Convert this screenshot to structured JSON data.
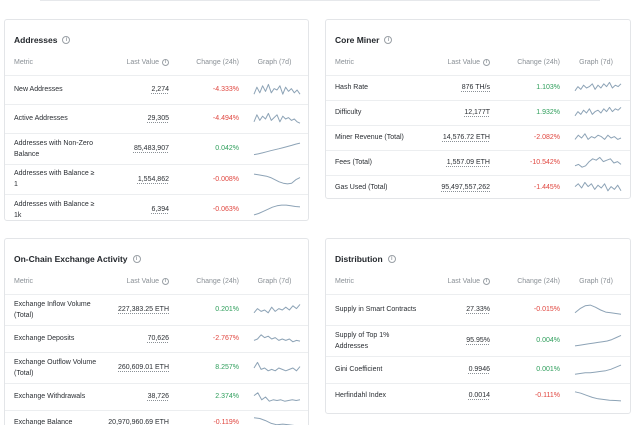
{
  "headers": {
    "metric": "Metric",
    "last_value": "Last Value",
    "change": "Change (24h)",
    "graph": "Graph (7d)"
  },
  "colors": {
    "positive": "#2e9e5b",
    "negative": "#e0463f",
    "sparkline": "#8da3b6"
  },
  "cards": {
    "addresses": {
      "title": "Addresses",
      "rows": [
        {
          "metric": "New Addresses",
          "value": "2,274",
          "change": "-4.333%",
          "trend": "neg",
          "spark": [
            0.2,
            0.7,
            0.3,
            0.8,
            0.4,
            0.9,
            0.3,
            0.6,
            0.5,
            0.8,
            0.2,
            0.7,
            0.4,
            0.6,
            0.3,
            0.5,
            0.2
          ]
        },
        {
          "metric": "Active Addresses",
          "value": "29,305",
          "change": "-4.494%",
          "trend": "neg",
          "spark": [
            0.3,
            0.8,
            0.4,
            0.7,
            0.5,
            0.9,
            0.4,
            0.6,
            0.8,
            0.3,
            0.7,
            0.5,
            0.6,
            0.4,
            0.5,
            0.3,
            0.2
          ]
        },
        {
          "metric": "Addresses with Non-Zero Balance",
          "value": "85,483,907",
          "change": "0.042%",
          "trend": "pos",
          "spark": [
            0.1,
            0.15,
            0.22,
            0.3,
            0.38,
            0.45,
            0.52,
            0.6,
            0.68,
            0.76,
            0.85,
            0.92
          ]
        },
        {
          "metric": "Addresses with Balance ≥ 1",
          "value": "1,554,862",
          "change": "-0.008%",
          "trend": "neg",
          "spark": [
            0.85,
            0.8,
            0.75,
            0.7,
            0.6,
            0.45,
            0.3,
            0.2,
            0.15,
            0.2,
            0.45,
            0.6
          ]
        },
        {
          "metric": "Addresses with Balance ≥ 1k",
          "value": "6,394",
          "change": "-0.063%",
          "trend": "neg",
          "spark": [
            0.15,
            0.25,
            0.4,
            0.55,
            0.7,
            0.8,
            0.85,
            0.85,
            0.8,
            0.75,
            0.72
          ]
        }
      ]
    },
    "miner": {
      "title": "Core Miner",
      "rows": [
        {
          "metric": "Hash Rate",
          "value": "876 TH/s",
          "change": "1.103%",
          "trend": "pos",
          "spark": [
            0.3,
            0.6,
            0.4,
            0.7,
            0.5,
            0.6,
            0.8,
            0.4,
            0.7,
            0.5,
            0.8,
            0.6,
            0.9,
            0.5,
            0.7,
            0.6,
            0.8
          ]
        },
        {
          "metric": "Difficulty",
          "value": "12,177T",
          "change": "1.932%",
          "trend": "pos",
          "spark": [
            0.3,
            0.6,
            0.4,
            0.7,
            0.5,
            0.8,
            0.4,
            0.6,
            0.7,
            0.5,
            0.8,
            0.6,
            0.9,
            0.6,
            0.8,
            0.7,
            0.9
          ]
        },
        {
          "metric": "Miner Revenue (Total)",
          "value": "14,576.72 ETH",
          "change": "-2.082%",
          "trend": "neg",
          "spark": [
            0.4,
            0.7,
            0.5,
            0.8,
            0.4,
            0.6,
            0.5,
            0.7,
            0.6,
            0.4,
            0.7,
            0.5,
            0.6,
            0.4,
            0.5
          ]
        },
        {
          "metric": "Fees (Total)",
          "value": "1,557.09 ETH",
          "change": "-10.542%",
          "trend": "neg",
          "spark": [
            0.3,
            0.4,
            0.2,
            0.3,
            0.6,
            0.8,
            0.7,
            0.9,
            0.6,
            0.7,
            0.8,
            0.5,
            0.6,
            0.4
          ]
        },
        {
          "metric": "Gas Used (Total)",
          "value": "95,497,557,262",
          "change": "-1.445%",
          "trend": "neg",
          "spark": [
            0.6,
            0.8,
            0.5,
            0.9,
            0.6,
            0.8,
            0.4,
            0.7,
            0.5,
            0.8,
            0.3,
            0.6,
            0.4,
            0.7,
            0.3
          ]
        }
      ]
    },
    "exchange": {
      "title": "On-Chain Exchange Activity",
      "rows": [
        {
          "metric": "Exchange Inflow Volume (Total)",
          "value": "227,383.25 ETH",
          "change": "0.201%",
          "trend": "pos",
          "spark": [
            0.3,
            0.6,
            0.4,
            0.5,
            0.3,
            0.7,
            0.4,
            0.6,
            0.5,
            0.7,
            0.5,
            0.8,
            0.6,
            0.9
          ]
        },
        {
          "metric": "Exchange Deposits",
          "value": "70,626",
          "change": "-2.767%",
          "trend": "neg",
          "spark": [
            0.4,
            0.5,
            0.8,
            0.6,
            0.7,
            0.5,
            0.6,
            0.4,
            0.5,
            0.4,
            0.5,
            0.3,
            0.4,
            0.35
          ]
        },
        {
          "metric": "Exchange Outflow Volume (Total)",
          "value": "260,609.01 ETH",
          "change": "8.257%",
          "trend": "pos",
          "spark": [
            0.5,
            0.9,
            0.4,
            0.5,
            0.3,
            0.4,
            0.3,
            0.5,
            0.4,
            0.3,
            0.4,
            0.5,
            0.3,
            0.6
          ]
        },
        {
          "metric": "Exchange Withdrawals",
          "value": "38,726",
          "change": "2.374%",
          "trend": "pos",
          "spark": [
            0.6,
            0.8,
            0.3,
            0.5,
            0.2,
            0.3,
            0.25,
            0.3,
            0.2,
            0.25,
            0.3,
            0.25,
            0.3
          ]
        },
        {
          "metric": "Exchange Balance",
          "value": "20,970,960.69 ETH",
          "change": "-0.119%",
          "trend": "neg",
          "spark": [
            0.8,
            0.75,
            0.6,
            0.4,
            0.3,
            0.35,
            0.3,
            0.25,
            0.2
          ]
        }
      ]
    },
    "distribution": {
      "title": "Distribution",
      "rows": [
        {
          "metric": "Supply in Smart Contracts",
          "value": "27.33%",
          "change": "-0.015%",
          "trend": "neg",
          "spark": [
            0.3,
            0.6,
            0.8,
            0.85,
            0.7,
            0.5,
            0.35,
            0.3,
            0.25,
            0.2
          ]
        },
        {
          "metric": "Supply of Top 1% Addresses",
          "value": "95.95%",
          "change": "0.004%",
          "trend": "pos",
          "spark": [
            0.15,
            0.2,
            0.25,
            0.3,
            0.35,
            0.4,
            0.45,
            0.5,
            0.6,
            0.75,
            0.9
          ]
        },
        {
          "metric": "Gini Coefficient",
          "value": "0.9946",
          "change": "0.001%",
          "trend": "pos",
          "spark": [
            0.2,
            0.25,
            0.3,
            0.3,
            0.35,
            0.4,
            0.45,
            0.55,
            0.7,
            0.85
          ]
        },
        {
          "metric": "Herfindahl Index",
          "value": "0.0014",
          "change": "-0.111%",
          "trend": "neg",
          "spark": [
            0.8,
            0.7,
            0.55,
            0.4,
            0.3,
            0.25,
            0.2,
            0.18,
            0.15
          ]
        }
      ]
    }
  }
}
